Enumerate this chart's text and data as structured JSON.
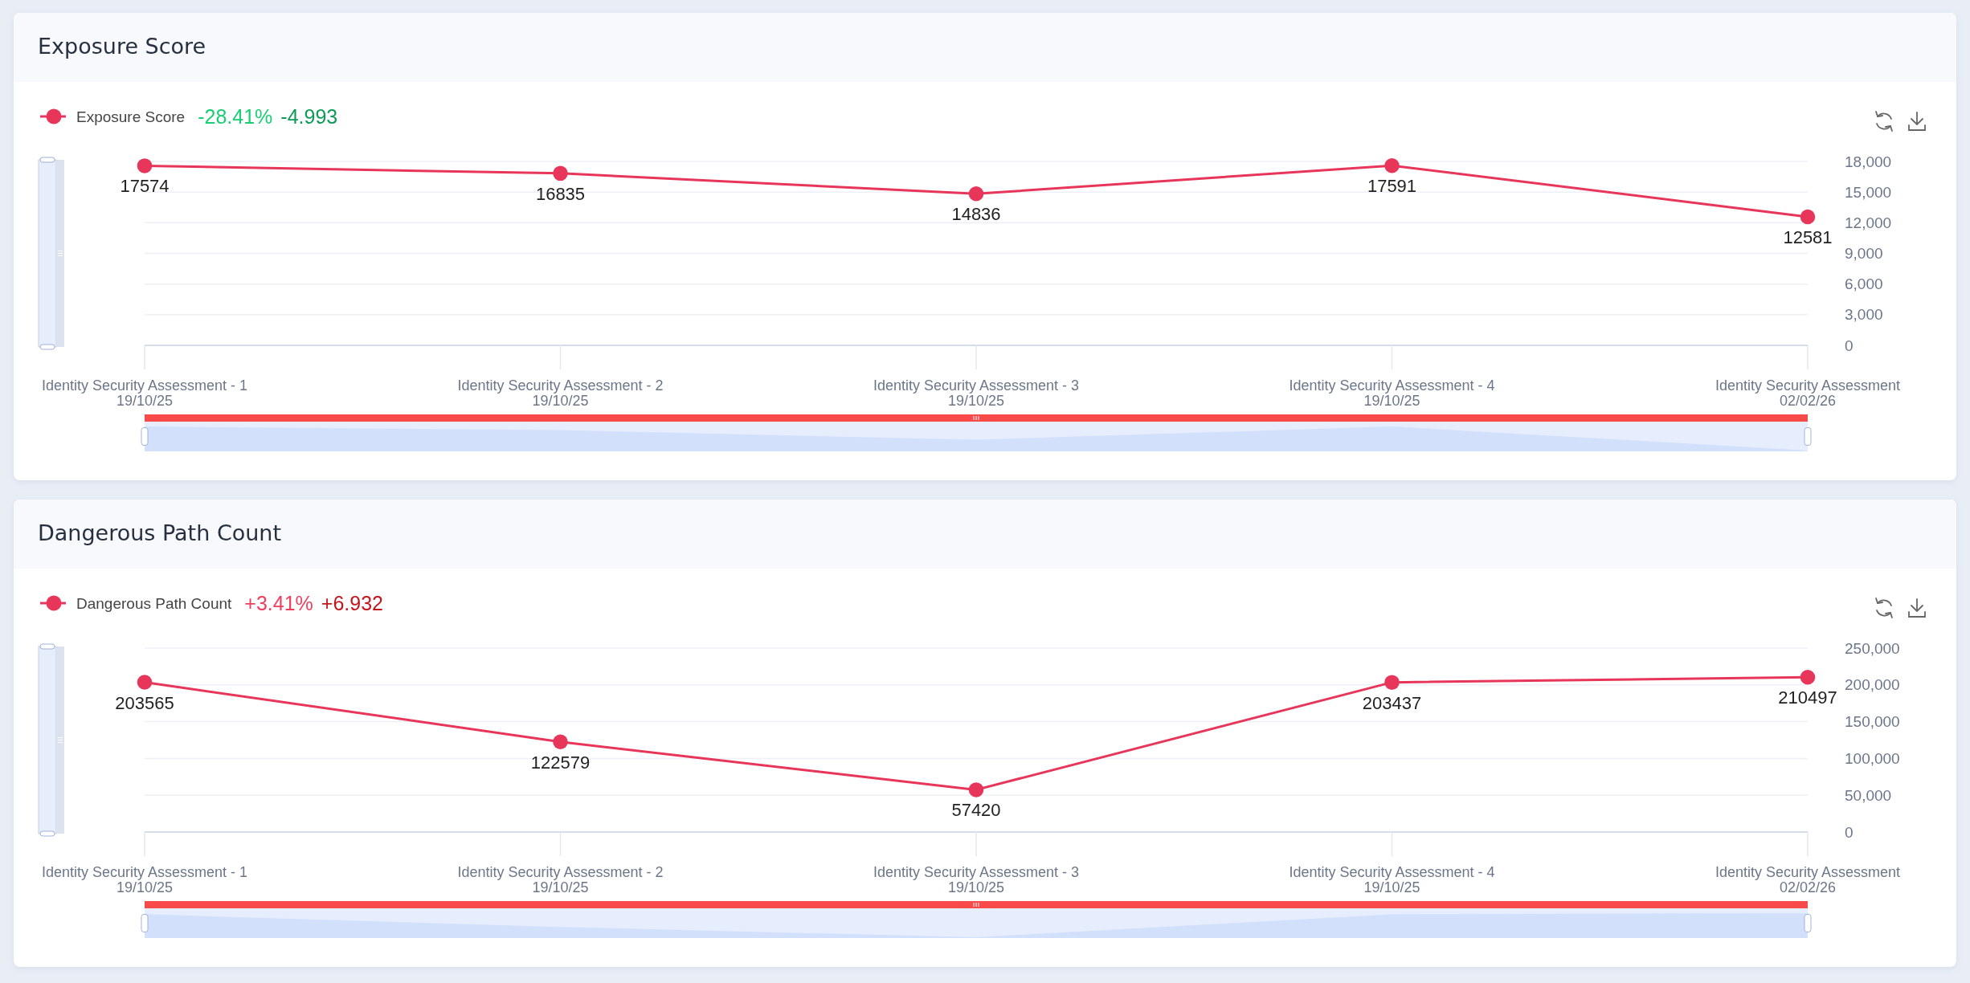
{
  "chart_data": [
    {
      "type": "line",
      "title": "Exposure Score",
      "categories": [
        "Identity Security Assessment - 1\n19/10/25",
        "Identity Security Assessment - 2\n19/10/25",
        "Identity Security Assessment - 3\n19/10/25",
        "Identity Security Assessment - 4\n19/10/25",
        "Identity Security Assessment\n02/02/26"
      ],
      "series": [
        {
          "name": "Exposure Score",
          "color": "#e8365a",
          "values": [
            17574,
            16835,
            14836,
            17591,
            12581
          ]
        }
      ],
      "ylim": [
        0,
        18000
      ],
      "yticks": [
        0,
        {
          "value": 3000,
          "label": "3,000"
        },
        {
          "value": 6000,
          "label": "6,000"
        },
        {
          "value": 9000,
          "label": "9,000"
        },
        {
          "value": 12000,
          "label": "12,000"
        },
        {
          "value": 15000,
          "label": "15,000"
        },
        {
          "value": 18000,
          "label": "18,000"
        }
      ],
      "grid": "y",
      "legend": "top left",
      "marker": "circle",
      "data_labels": true,
      "annotations": [
        "-28.41%",
        "-4.993"
      ]
    },
    {
      "type": "line",
      "title": "Dangerous Path Count",
      "categories": [
        "Identity Security Assessment - 1\n19/10/25",
        "Identity Security Assessment - 2\n19/10/25",
        "Identity Security Assessment - 3\n19/10/25",
        "Identity Security Assessment - 4\n19/10/25",
        "Identity Security Assessment\n02/02/26"
      ],
      "series": [
        {
          "name": "Dangerous Path Count",
          "color": "#e8365a",
          "values": [
            203565,
            122579,
            57420,
            203437,
            210497
          ]
        }
      ],
      "ylim": [
        0,
        250000
      ],
      "yticks": [
        0,
        {
          "value": 50000,
          "label": "50,000"
        },
        {
          "value": 100000,
          "label": "100,000"
        },
        {
          "value": 150000,
          "label": "150,000"
        },
        {
          "value": 200000,
          "label": "200,000"
        },
        {
          "value": 250000,
          "label": "250,000"
        }
      ],
      "grid": "y",
      "legend": "top left",
      "marker": "circle",
      "data_labels": true,
      "annotations": [
        "+3.41%",
        "+6.932"
      ]
    }
  ]
}
